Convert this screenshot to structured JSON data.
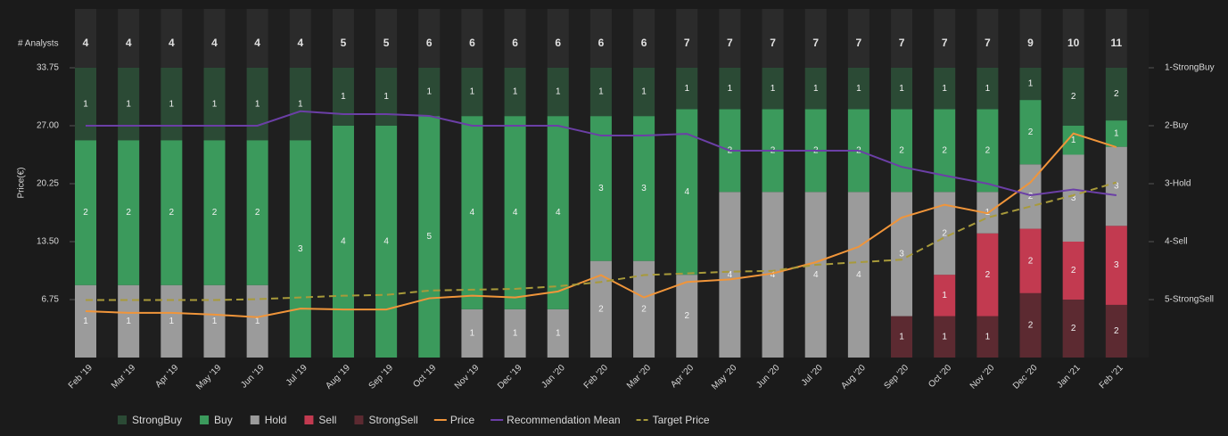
{
  "chart_data": {
    "type": "bar",
    "stacked": "normalized",
    "ylabel": "Price(€)",
    "analysts_label": "# Analysts",
    "categories": [
      "Feb '19",
      "Mar '19",
      "Apr '19",
      "May '19",
      "Jun '19",
      "Jul '19",
      "Aug '19",
      "Sep '19",
      "Oct '19",
      "Nov '19",
      "Dec '19",
      "Jan '20",
      "Feb '20",
      "Mar '20",
      "Apr '20",
      "May '20",
      "Jun '20",
      "Jul '20",
      "Aug '20",
      "Sep '20",
      "Oct '20",
      "Nov '20",
      "Dec '20",
      "Jan '21",
      "Feb '21"
    ],
    "analysts": [
      4,
      4,
      4,
      4,
      4,
      4,
      5,
      5,
      6,
      6,
      6,
      6,
      6,
      6,
      7,
      7,
      7,
      7,
      7,
      7,
      7,
      7,
      9,
      10,
      11
    ],
    "ylim": [
      0,
      33.75
    ],
    "yticks": [
      6.75,
      {
        "value": 13.5,
        "label": "13.50"
      },
      20.25,
      {
        "value": 27,
        "label": "27.00"
      },
      33.75
    ],
    "y2lim": [
      6,
      1
    ],
    "y2ticks": [
      {
        "value": 1,
        "label": "1-StrongBuy"
      },
      {
        "value": 2,
        "label": "2-Buy"
      },
      {
        "value": 3,
        "label": "3-Hold"
      },
      {
        "value": 4,
        "label": "4-Sell"
      },
      {
        "value": 5,
        "label": "5-StrongSell"
      }
    ],
    "series": [
      {
        "name": "StrongBuy",
        "type": "bar",
        "color": "#2b4a35",
        "values": [
          1,
          1,
          1,
          1,
          1,
          1,
          1,
          1,
          1,
          1,
          1,
          1,
          1,
          1,
          1,
          1,
          1,
          1,
          1,
          1,
          1,
          1,
          1,
          2,
          2
        ]
      },
      {
        "name": "Buy",
        "type": "bar",
        "color": "#3b9a5c",
        "values": [
          2,
          2,
          2,
          2,
          2,
          3,
          4,
          4,
          5,
          4,
          4,
          4,
          3,
          3,
          4,
          2,
          2,
          2,
          2,
          2,
          2,
          2,
          2,
          1,
          1
        ]
      },
      {
        "name": "Hold",
        "type": "bar",
        "color": "#9b9b9b",
        "values": [
          1,
          1,
          1,
          1,
          1,
          0,
          0,
          0,
          0,
          1,
          1,
          1,
          2,
          2,
          2,
          4,
          4,
          4,
          4,
          3,
          2,
          1,
          2,
          3,
          3
        ]
      },
      {
        "name": "Sell",
        "type": "bar",
        "color": "#c23a50",
        "values": [
          0,
          0,
          0,
          0,
          0,
          0,
          0,
          0,
          0,
          0,
          0,
          0,
          0,
          0,
          0,
          0,
          0,
          0,
          0,
          0,
          1,
          2,
          2,
          2,
          3
        ]
      },
      {
        "name": "StrongSell",
        "type": "bar",
        "color": "#5c2a31",
        "values": [
          0,
          0,
          0,
          0,
          0,
          0,
          0,
          0,
          0,
          0,
          0,
          0,
          0,
          0,
          0,
          0,
          0,
          0,
          0,
          1,
          1,
          1,
          2,
          2,
          2
        ]
      },
      {
        "name": "Price",
        "type": "line",
        "color": "#f0953a",
        "values": [
          5.4,
          5.2,
          5.2,
          5.0,
          4.7,
          5.7,
          5.6,
          5.6,
          6.9,
          7.2,
          7.0,
          7.7,
          9.6,
          7.0,
          8.8,
          9.1,
          9.8,
          11.1,
          12.9,
          16.3,
          17.8,
          16.8,
          20.4,
          26.1,
          24.5
        ]
      },
      {
        "name": "Recommendation Mean",
        "type": "line",
        "axis": "y2",
        "color": "#6b3fa6",
        "values": [
          2.0,
          2.0,
          2.0,
          2.0,
          2.0,
          1.75,
          1.8,
          1.8,
          1.83,
          2.0,
          2.0,
          2.0,
          2.17,
          2.17,
          2.14,
          2.43,
          2.43,
          2.43,
          2.43,
          2.71,
          2.86,
          3.0,
          3.2,
          3.1,
          3.2
        ]
      },
      {
        "name": "Target Price",
        "type": "line",
        "dashed": true,
        "color": "#a89a3a",
        "values": [
          6.7,
          6.7,
          6.7,
          6.7,
          6.8,
          7.0,
          7.2,
          7.3,
          7.8,
          7.9,
          8.0,
          8.3,
          8.8,
          9.6,
          9.8,
          10.0,
          10.1,
          10.8,
          11.1,
          11.4,
          14.0,
          16.3,
          17.6,
          18.9,
          20.4
        ]
      }
    ]
  }
}
